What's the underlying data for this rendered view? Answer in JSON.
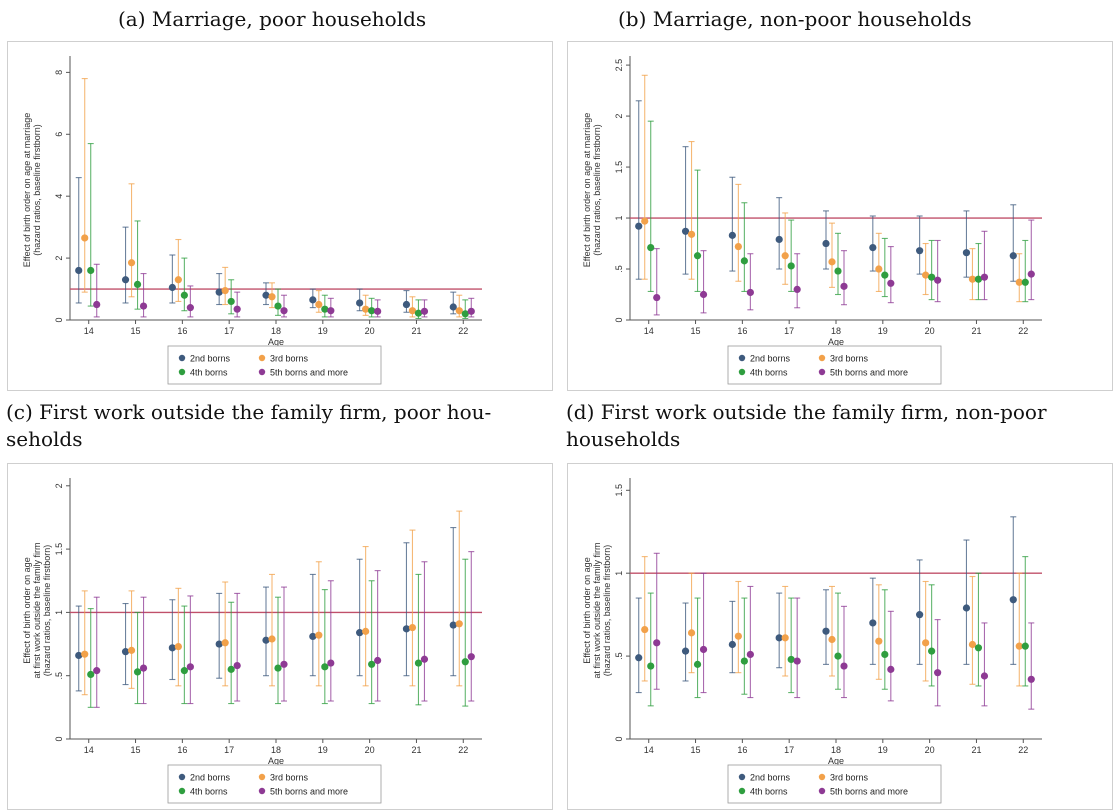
{
  "captions": {
    "a": "(a) Marriage, poor households",
    "b": "(b) Marriage, non-poor households",
    "c_line1": "(c) First work outside the family firm, poor hou-",
    "c_line2": "seholds",
    "d_line1": "(d) First work outside the family firm, non-poor",
    "d_line2": "households"
  },
  "colors": {
    "2nd borns": "#3e5a7d",
    "3rd borns": "#f2a14a",
    "4th borns": "#2f9e3f",
    "5th borns and more": "#8e3a94",
    "reference_line": "#c0506a"
  },
  "chart_data": [
    {
      "id": "a",
      "type": "scatter",
      "xlabel": "Age",
      "ylabel_lines": [
        "Effect of birth order on age at marriage",
        "(hazard ratios, baseline firstborn)"
      ],
      "ylim": [
        0,
        8.4
      ],
      "yticks": [
        0,
        2,
        4,
        6,
        8
      ],
      "yticklabels": [
        "0",
        "2",
        "4",
        "6",
        "8"
      ],
      "x": [
        14,
        15,
        16,
        17,
        18,
        19,
        20,
        21,
        22
      ],
      "reference": 1,
      "legend": [
        "2nd borns",
        "3rd borns",
        "4th borns",
        "5th borns and more"
      ],
      "series": [
        {
          "name": "2nd borns",
          "values": [
            1.6,
            1.3,
            1.05,
            0.9,
            0.8,
            0.65,
            0.55,
            0.5,
            0.42
          ],
          "lower": [
            0.55,
            0.55,
            0.55,
            0.5,
            0.5,
            0.4,
            0.3,
            0.25,
            0.2
          ],
          "upper": [
            4.6,
            3.0,
            2.1,
            1.5,
            1.2,
            1.0,
            1.0,
            0.95,
            0.9
          ]
        },
        {
          "name": "3rd borns",
          "values": [
            2.65,
            1.85,
            1.3,
            0.95,
            0.75,
            0.5,
            0.35,
            0.3,
            0.3
          ],
          "lower": [
            0.9,
            0.75,
            0.6,
            0.5,
            0.4,
            0.25,
            0.15,
            0.1,
            0.1
          ],
          "upper": [
            7.8,
            4.4,
            2.6,
            1.7,
            1.2,
            0.95,
            0.8,
            0.75,
            0.8
          ]
        },
        {
          "name": "4th borns",
          "values": [
            1.6,
            1.15,
            0.8,
            0.6,
            0.45,
            0.35,
            0.3,
            0.22,
            0.2
          ],
          "lower": [
            0.45,
            0.35,
            0.3,
            0.2,
            0.15,
            0.1,
            0.1,
            0.05,
            0.05
          ],
          "upper": [
            5.7,
            3.2,
            2.0,
            1.3,
            1.0,
            0.8,
            0.7,
            0.65,
            0.65
          ]
        },
        {
          "name": "5th borns and more",
          "values": [
            0.5,
            0.45,
            0.4,
            0.35,
            0.3,
            0.3,
            0.28,
            0.28,
            0.28
          ],
          "lower": [
            0.1,
            0.1,
            0.1,
            0.1,
            0.1,
            0.1,
            0.1,
            0.1,
            0.1
          ],
          "upper": [
            1.8,
            1.5,
            1.1,
            0.9,
            0.8,
            0.7,
            0.65,
            0.65,
            0.7
          ]
        }
      ]
    },
    {
      "id": "b",
      "type": "scatter",
      "xlabel": "Age",
      "ylabel_lines": [
        "Effect of birth order on age at marriage",
        "(hazard ratios, baseline firstborn)"
      ],
      "ylim": [
        0,
        2.55
      ],
      "yticks": [
        0,
        0.5,
        1,
        1.5,
        2,
        2.5
      ],
      "yticklabels": [
        "0",
        ".5",
        "1",
        "1.5",
        "2",
        "2.5"
      ],
      "x": [
        14,
        15,
        16,
        17,
        18,
        19,
        20,
        21,
        22
      ],
      "reference": 1,
      "legend": [
        "2nd borns",
        "3rd borns",
        "4th borns",
        "5th borns and more"
      ],
      "series": [
        {
          "name": "2nd borns",
          "values": [
            0.92,
            0.87,
            0.83,
            0.79,
            0.75,
            0.71,
            0.68,
            0.66,
            0.63
          ],
          "lower": [
            0.4,
            0.45,
            0.48,
            0.5,
            0.5,
            0.48,
            0.45,
            0.42,
            0.38
          ],
          "upper": [
            2.15,
            1.7,
            1.4,
            1.2,
            1.07,
            1.02,
            1.02,
            1.07,
            1.13
          ]
        },
        {
          "name": "3rd borns",
          "values": [
            0.97,
            0.84,
            0.72,
            0.63,
            0.57,
            0.5,
            0.44,
            0.4,
            0.37
          ],
          "lower": [
            0.4,
            0.4,
            0.38,
            0.35,
            0.32,
            0.28,
            0.25,
            0.2,
            0.18
          ],
          "upper": [
            2.4,
            1.75,
            1.33,
            1.05,
            0.95,
            0.85,
            0.75,
            0.7,
            0.65
          ]
        },
        {
          "name": "4th borns",
          "values": [
            0.71,
            0.63,
            0.58,
            0.53,
            0.48,
            0.44,
            0.42,
            0.4,
            0.37
          ],
          "lower": [
            0.28,
            0.28,
            0.28,
            0.28,
            0.25,
            0.23,
            0.2,
            0.2,
            0.18
          ],
          "upper": [
            1.95,
            1.47,
            1.15,
            0.98,
            0.85,
            0.8,
            0.78,
            0.75,
            0.78
          ]
        },
        {
          "name": "5th borns and more",
          "values": [
            0.22,
            0.25,
            0.27,
            0.3,
            0.33,
            0.36,
            0.39,
            0.42,
            0.45
          ],
          "lower": [
            0.05,
            0.07,
            0.1,
            0.12,
            0.15,
            0.17,
            0.18,
            0.2,
            0.2
          ],
          "upper": [
            0.7,
            0.68,
            0.65,
            0.65,
            0.68,
            0.72,
            0.78,
            0.87,
            0.98
          ]
        }
      ]
    },
    {
      "id": "c",
      "type": "scatter",
      "xlabel": "Age",
      "ylabel_lines": [
        "Effect of birth order on age",
        "at first work outside the family firm",
        "(hazard ratios, baseline firstborn)"
      ],
      "ylim": [
        0,
        2.03
      ],
      "yticks": [
        0,
        0.5,
        1,
        1.5,
        2
      ],
      "yticklabels": [
        "0",
        ".5",
        "1",
        "1.5",
        "2"
      ],
      "x": [
        14,
        15,
        16,
        17,
        18,
        19,
        20,
        21,
        22
      ],
      "reference": 1,
      "legend": [
        "2nd borns",
        "3rd borns",
        "4th borns",
        "5th borns and more"
      ],
      "series": [
        {
          "name": "2nd borns",
          "values": [
            0.66,
            0.69,
            0.72,
            0.75,
            0.78,
            0.81,
            0.84,
            0.87,
            0.9
          ],
          "lower": [
            0.38,
            0.43,
            0.47,
            0.48,
            0.5,
            0.5,
            0.5,
            0.5,
            0.5
          ],
          "upper": [
            1.05,
            1.07,
            1.1,
            1.15,
            1.2,
            1.3,
            1.42,
            1.55,
            1.67
          ]
        },
        {
          "name": "3rd borns",
          "values": [
            0.67,
            0.7,
            0.73,
            0.76,
            0.79,
            0.82,
            0.85,
            0.88,
            0.91
          ],
          "lower": [
            0.35,
            0.4,
            0.42,
            0.42,
            0.42,
            0.42,
            0.42,
            0.42,
            0.42
          ],
          "upper": [
            1.17,
            1.17,
            1.19,
            1.24,
            1.3,
            1.4,
            1.52,
            1.65,
            1.8
          ]
        },
        {
          "name": "4th borns",
          "values": [
            0.51,
            0.53,
            0.54,
            0.55,
            0.56,
            0.57,
            0.59,
            0.6,
            0.61
          ],
          "lower": [
            0.25,
            0.28,
            0.28,
            0.28,
            0.28,
            0.28,
            0.28,
            0.27,
            0.26
          ],
          "upper": [
            1.03,
            1.0,
            1.05,
            1.08,
            1.12,
            1.18,
            1.25,
            1.3,
            1.42
          ]
        },
        {
          "name": "5th borns and more",
          "values": [
            0.54,
            0.56,
            0.57,
            0.58,
            0.59,
            0.6,
            0.62,
            0.63,
            0.65
          ],
          "lower": [
            0.25,
            0.28,
            0.28,
            0.3,
            0.3,
            0.3,
            0.3,
            0.3,
            0.3
          ],
          "upper": [
            1.12,
            1.12,
            1.13,
            1.15,
            1.2,
            1.25,
            1.33,
            1.4,
            1.48
          ]
        }
      ]
    },
    {
      "id": "d",
      "type": "scatter",
      "xlabel": "Age",
      "ylabel_lines": [
        "Effect of birth order on age",
        "at first work outside the family firm",
        "(hazard ratios, baseline firstborn)"
      ],
      "ylim": [
        0,
        1.55
      ],
      "yticks": [
        0,
        0.5,
        1,
        1.5
      ],
      "yticklabels": [
        "0",
        ".5",
        "1",
        "1.5"
      ],
      "x": [
        14,
        15,
        16,
        17,
        18,
        19,
        20,
        21,
        22
      ],
      "reference": 1,
      "legend": [
        "2nd borns",
        "3rd borns",
        "4th borns",
        "5th borns and more"
      ],
      "series": [
        {
          "name": "2nd borns",
          "values": [
            0.49,
            0.53,
            0.57,
            0.61,
            0.65,
            0.7,
            0.75,
            0.79,
            0.84
          ],
          "lower": [
            0.28,
            0.35,
            0.4,
            0.43,
            0.45,
            0.45,
            0.45,
            0.45,
            0.45
          ],
          "upper": [
            0.85,
            0.82,
            0.83,
            0.88,
            0.9,
            0.97,
            1.08,
            1.2,
            1.34
          ]
        },
        {
          "name": "3rd borns",
          "values": [
            0.66,
            0.64,
            0.62,
            0.61,
            0.6,
            0.59,
            0.58,
            0.57,
            0.56
          ],
          "lower": [
            0.35,
            0.4,
            0.4,
            0.38,
            0.38,
            0.36,
            0.35,
            0.33,
            0.32
          ],
          "upper": [
            1.1,
            1.0,
            0.95,
            0.92,
            0.92,
            0.93,
            0.95,
            0.98,
            1.0
          ]
        },
        {
          "name": "4th borns",
          "values": [
            0.44,
            0.45,
            0.47,
            0.48,
            0.5,
            0.51,
            0.53,
            0.55,
            0.56
          ],
          "lower": [
            0.2,
            0.25,
            0.27,
            0.28,
            0.3,
            0.3,
            0.32,
            0.32,
            0.32
          ],
          "upper": [
            0.88,
            0.85,
            0.85,
            0.85,
            0.88,
            0.9,
            0.93,
            1.0,
            1.1
          ]
        },
        {
          "name": "5th borns and more",
          "values": [
            0.58,
            0.54,
            0.51,
            0.47,
            0.44,
            0.42,
            0.4,
            0.38,
            0.36
          ],
          "lower": [
            0.3,
            0.28,
            0.25,
            0.25,
            0.25,
            0.23,
            0.2,
            0.2,
            0.18
          ],
          "upper": [
            1.12,
            1.0,
            0.92,
            0.85,
            0.8,
            0.77,
            0.72,
            0.7,
            0.7
          ]
        }
      ]
    }
  ]
}
